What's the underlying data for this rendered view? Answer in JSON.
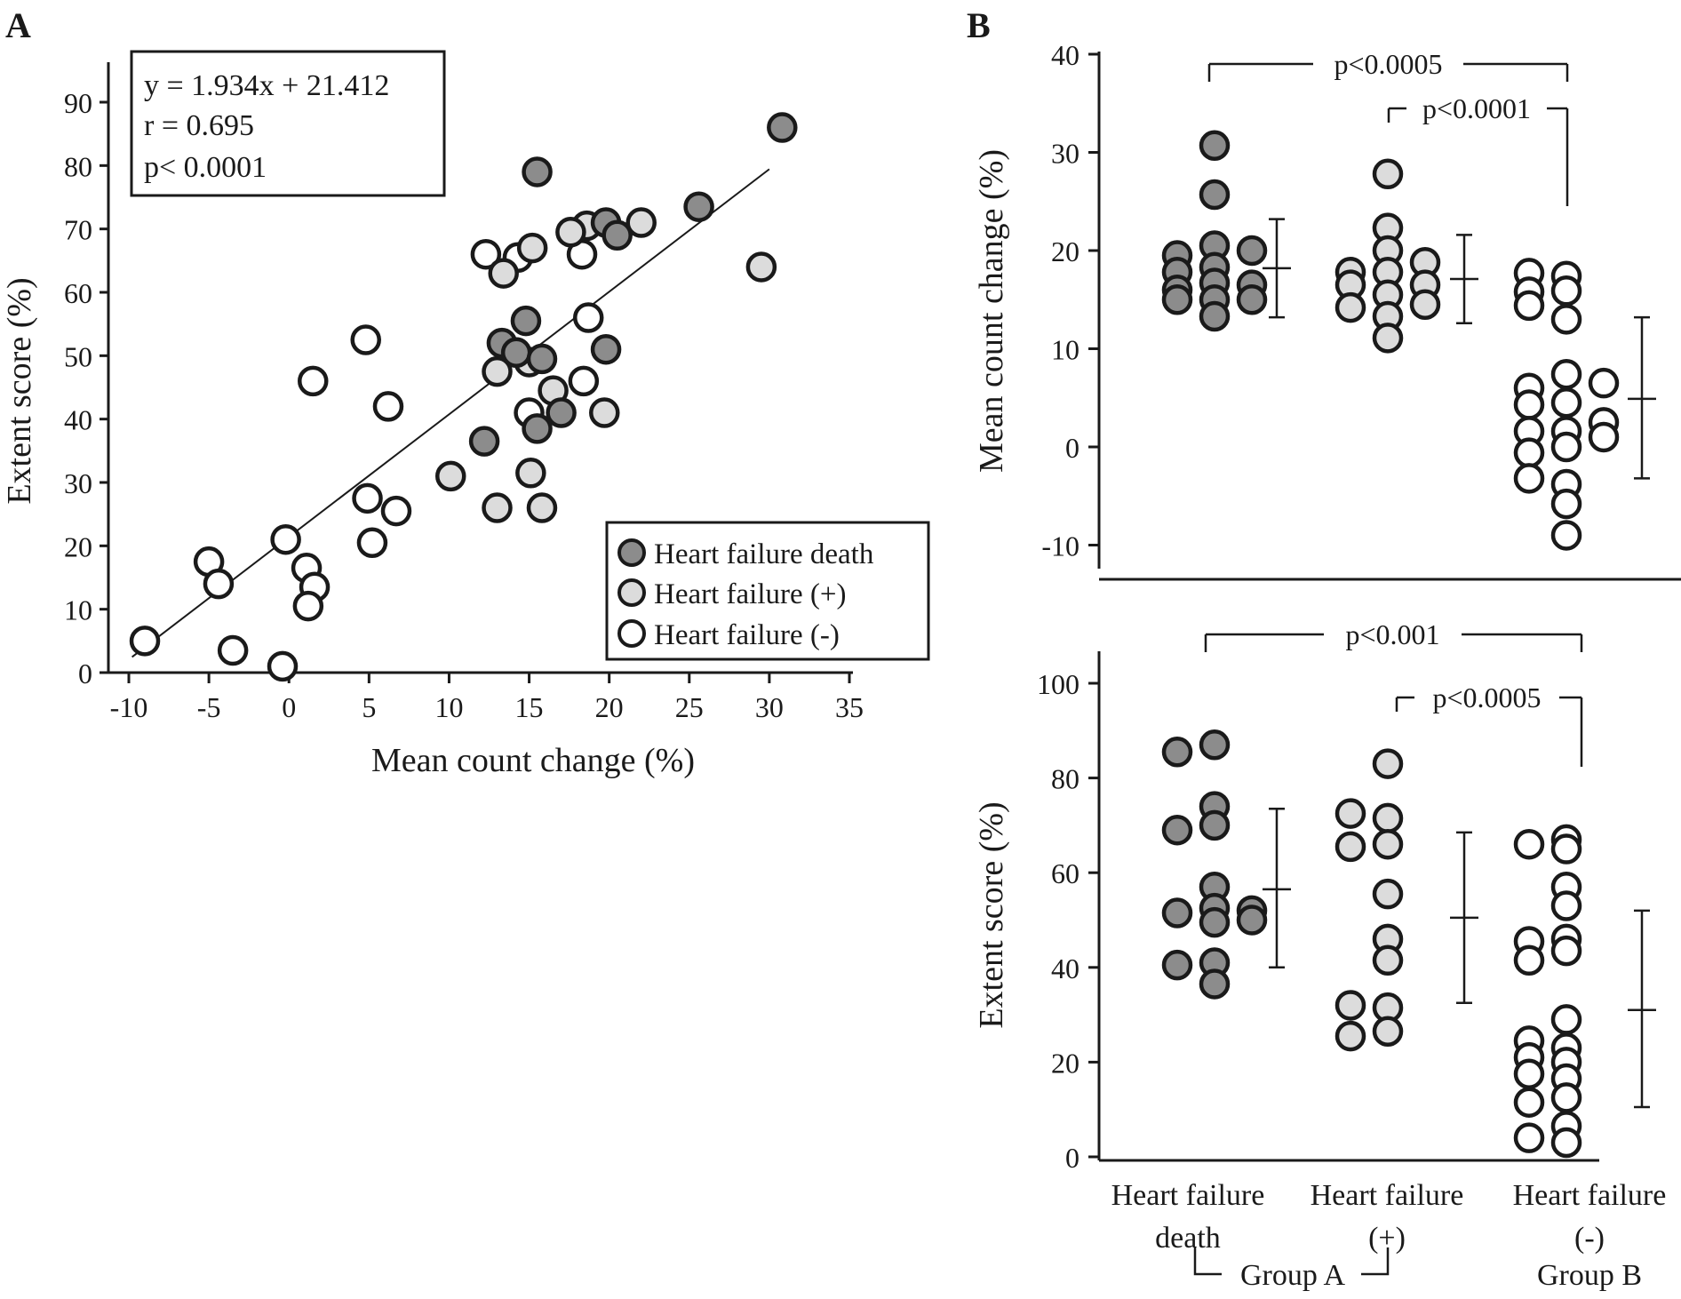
{
  "colors": {
    "death": "#8c8c8c",
    "hf_pos": "#dcdcdc",
    "hf_neg": "#ffffff",
    "stroke": "#1a1a1a"
  },
  "chart_data": [
    {
      "panel": "A",
      "type": "scatter",
      "xlabel": "Mean count change (%)",
      "ylabel": "Extent score (%)",
      "xlim": [
        -10,
        35
      ],
      "ylim": [
        0,
        95
      ],
      "xticks": [
        -10,
        -5,
        0,
        5,
        10,
        15,
        20,
        25,
        30,
        35
      ],
      "yticks": [
        0,
        10,
        20,
        30,
        40,
        50,
        60,
        70,
        80,
        90
      ],
      "regression": {
        "slope": 1.934,
        "intercept": 21.412,
        "x_range": [
          -10,
          30
        ]
      },
      "stats_text": [
        "y = 1.934x + 21.412",
        "r = 0.695",
        "p< 0.0001"
      ],
      "legend": {
        "position": "bottom-right",
        "entries": [
          {
            "label": "Heart failure death",
            "group": "death"
          },
          {
            "label": "Heart failure (+)",
            "group": "hf_pos"
          },
          {
            "label": "Heart failure (-)",
            "group": "hf_neg"
          }
        ]
      },
      "series": [
        {
          "group": "death",
          "points": [
            [
              15.5,
              79
            ],
            [
              30.8,
              86
            ],
            [
              25.6,
              73.5
            ],
            [
              19.8,
              71
            ],
            [
              20.5,
              69
            ],
            [
              14.8,
              55.5
            ],
            [
              13.3,
              52
            ],
            [
              14.2,
              50.5
            ],
            [
              15.8,
              49.5
            ],
            [
              19.8,
              51
            ],
            [
              17.0,
              41
            ],
            [
              15.5,
              38.5
            ],
            [
              12.2,
              36.5
            ]
          ]
        },
        {
          "group": "hf_pos",
          "points": [
            [
              15.2,
              67
            ],
            [
              18.6,
              70.5
            ],
            [
              17.6,
              69.5
            ],
            [
              22.0,
              71
            ],
            [
              29.5,
              64
            ],
            [
              13.4,
              63
            ],
            [
              13.0,
              47.5
            ],
            [
              15.0,
              49
            ],
            [
              16.5,
              44.5
            ],
            [
              19.7,
              41
            ],
            [
              10.1,
              31
            ],
            [
              15.1,
              31.5
            ],
            [
              13.0,
              26
            ],
            [
              15.8,
              26
            ]
          ]
        },
        {
          "group": "hf_neg",
          "points": [
            [
              12.3,
              66
            ],
            [
              14.3,
              65.5
            ],
            [
              18.3,
              66
            ],
            [
              18.7,
              56
            ],
            [
              18.4,
              46
            ],
            [
              15.0,
              41
            ],
            [
              4.8,
              52.5
            ],
            [
              1.5,
              46
            ],
            [
              6.2,
              42
            ],
            [
              4.9,
              27.5
            ],
            [
              6.7,
              25.5
            ],
            [
              5.2,
              20.5
            ],
            [
              -0.2,
              21
            ],
            [
              1.1,
              16.5
            ],
            [
              1.6,
              13.5
            ],
            [
              1.2,
              10.5
            ],
            [
              -5.0,
              17.5
            ],
            [
              -4.4,
              14
            ],
            [
              -3.5,
              3.5
            ],
            [
              -9.0,
              5
            ],
            [
              -0.4,
              1
            ]
          ]
        }
      ]
    },
    {
      "panel": "B-top",
      "type": "scatter",
      "ylabel": "Mean count change (%)",
      "ylim": [
        -12,
        40
      ],
      "yticks": [
        -10,
        0,
        10,
        20,
        30,
        40
      ],
      "brackets": [
        {
          "label": "p<0.0005",
          "from": "Heart failure death",
          "to": "Heart failure (-)"
        },
        {
          "label": "p<0.0001",
          "from": "Heart failure (+)",
          "to": "Heart failure (-)"
        }
      ],
      "groups": [
        {
          "group": "death",
          "points": [
            [
              -1,
              19.5
            ],
            [
              -1,
              17.8
            ],
            [
              -1,
              16.0
            ],
            [
              -1,
              15.0
            ],
            [
              0,
              30.7
            ],
            [
              0,
              25.7
            ],
            [
              0,
              20.5
            ],
            [
              0,
              18.3
            ],
            [
              0,
              16.7
            ],
            [
              0,
              15.0
            ],
            [
              0,
              13.3
            ],
            [
              1,
              20.0
            ],
            [
              1,
              16.5
            ],
            [
              1,
              15.0
            ]
          ],
          "mean": 18.2,
          "sd_low": 13.2,
          "sd_high": 23.2
        },
        {
          "group": "hf_pos",
          "points": [
            [
              -1,
              17.8
            ],
            [
              -1,
              16.5
            ],
            [
              -1,
              14.2
            ],
            [
              0,
              27.8
            ],
            [
              0,
              22.3
            ],
            [
              0,
              20.0
            ],
            [
              0,
              17.8
            ],
            [
              0,
              15.5
            ],
            [
              0,
              13.3
            ],
            [
              0,
              11.1
            ],
            [
              1,
              18.8
            ],
            [
              1,
              16.5
            ],
            [
              1,
              14.5
            ]
          ],
          "mean": 17.1,
          "sd_low": 12.6,
          "sd_high": 21.6
        },
        {
          "group": "hf_neg",
          "points": [
            [
              -1,
              17.7
            ],
            [
              -1,
              15.8
            ],
            [
              -1,
              14.4
            ],
            [
              -1,
              6.0
            ],
            [
              -1,
              4.3
            ],
            [
              -1,
              1.6
            ],
            [
              -1,
              -0.6
            ],
            [
              -1,
              -3.2
            ],
            [
              0,
              17.4
            ],
            [
              0,
              15.9
            ],
            [
              0,
              13.0
            ],
            [
              0,
              7.4
            ],
            [
              0,
              4.5
            ],
            [
              0,
              1.6
            ],
            [
              0,
              0.0
            ],
            [
              0,
              -3.8
            ],
            [
              0,
              -5.8
            ],
            [
              0,
              -9.0
            ],
            [
              1,
              6.5
            ],
            [
              1,
              2.5
            ],
            [
              1,
              1.0
            ]
          ],
          "mean": 4.9,
          "sd_low": -3.2,
          "sd_high": 13.2
        }
      ]
    },
    {
      "panel": "B-bottom",
      "type": "scatter",
      "ylabel": "Extent score (%)",
      "ylim": [
        0,
        107
      ],
      "yticks": [
        0,
        20,
        40,
        60,
        80,
        100
      ],
      "brackets": [
        {
          "label": "p<0.001",
          "from": "Heart failure death",
          "to": "Heart failure (-)"
        },
        {
          "label": "p<0.0005",
          "from": "Heart failure (+)",
          "to": "Heart failure (-)"
        }
      ],
      "groups": [
        {
          "group": "death",
          "points": [
            [
              -1,
              85.5
            ],
            [
              -1,
              69
            ],
            [
              -1,
              51.5
            ],
            [
              -1,
              40.5
            ],
            [
              0,
              87
            ],
            [
              0,
              74
            ],
            [
              0,
              70
            ],
            [
              0,
              57
            ],
            [
              0,
              52.5
            ],
            [
              0,
              49.5
            ],
            [
              0,
              41
            ],
            [
              0,
              36.5
            ],
            [
              1,
              52
            ],
            [
              1,
              50
            ]
          ],
          "mean": 56.5,
          "sd_low": 40,
          "sd_high": 73.5
        },
        {
          "group": "hf_pos",
          "points": [
            [
              -1,
              72.5
            ],
            [
              -1,
              65.5
            ],
            [
              -1,
              32
            ],
            [
              -1,
              25.5
            ],
            [
              0,
              83
            ],
            [
              0,
              71.5
            ],
            [
              0,
              66
            ],
            [
              0,
              55.5
            ],
            [
              0,
              46
            ],
            [
              0,
              41.5
            ],
            [
              0,
              31.5
            ],
            [
              0,
              26.5
            ]
          ],
          "mean": 50.5,
          "sd_low": 32.5,
          "sd_high": 68.5
        },
        {
          "group": "hf_neg",
          "points": [
            [
              -1,
              66
            ],
            [
              -1,
              45.5
            ],
            [
              -1,
              41.5
            ],
            [
              -1,
              24.5
            ],
            [
              -1,
              21
            ],
            [
              -1,
              17.5
            ],
            [
              -1,
              11.5
            ],
            [
              -1,
              4
            ],
            [
              0,
              67
            ],
            [
              0,
              65
            ],
            [
              0,
              57
            ],
            [
              0,
              53
            ],
            [
              0,
              46
            ],
            [
              0,
              43.5
            ],
            [
              0,
              29
            ],
            [
              0,
              23
            ],
            [
              0,
              20
            ],
            [
              0,
              16.5
            ],
            [
              0,
              12.5
            ],
            [
              0,
              6.5
            ],
            [
              0,
              3
            ]
          ],
          "mean": 31,
          "sd_low": 10.5,
          "sd_high": 52
        }
      ]
    }
  ],
  "panels": {
    "a_label": "A",
    "b_label": "B"
  },
  "categories": [
    {
      "line1": "Heart failure",
      "line2": "death"
    },
    {
      "line1": "Heart failure",
      "line2": "(+)"
    },
    {
      "line1": "Heart failure",
      "line2": "(-)"
    }
  ],
  "group_labels": {
    "group_a": "Group A",
    "group_b": "Group B"
  }
}
